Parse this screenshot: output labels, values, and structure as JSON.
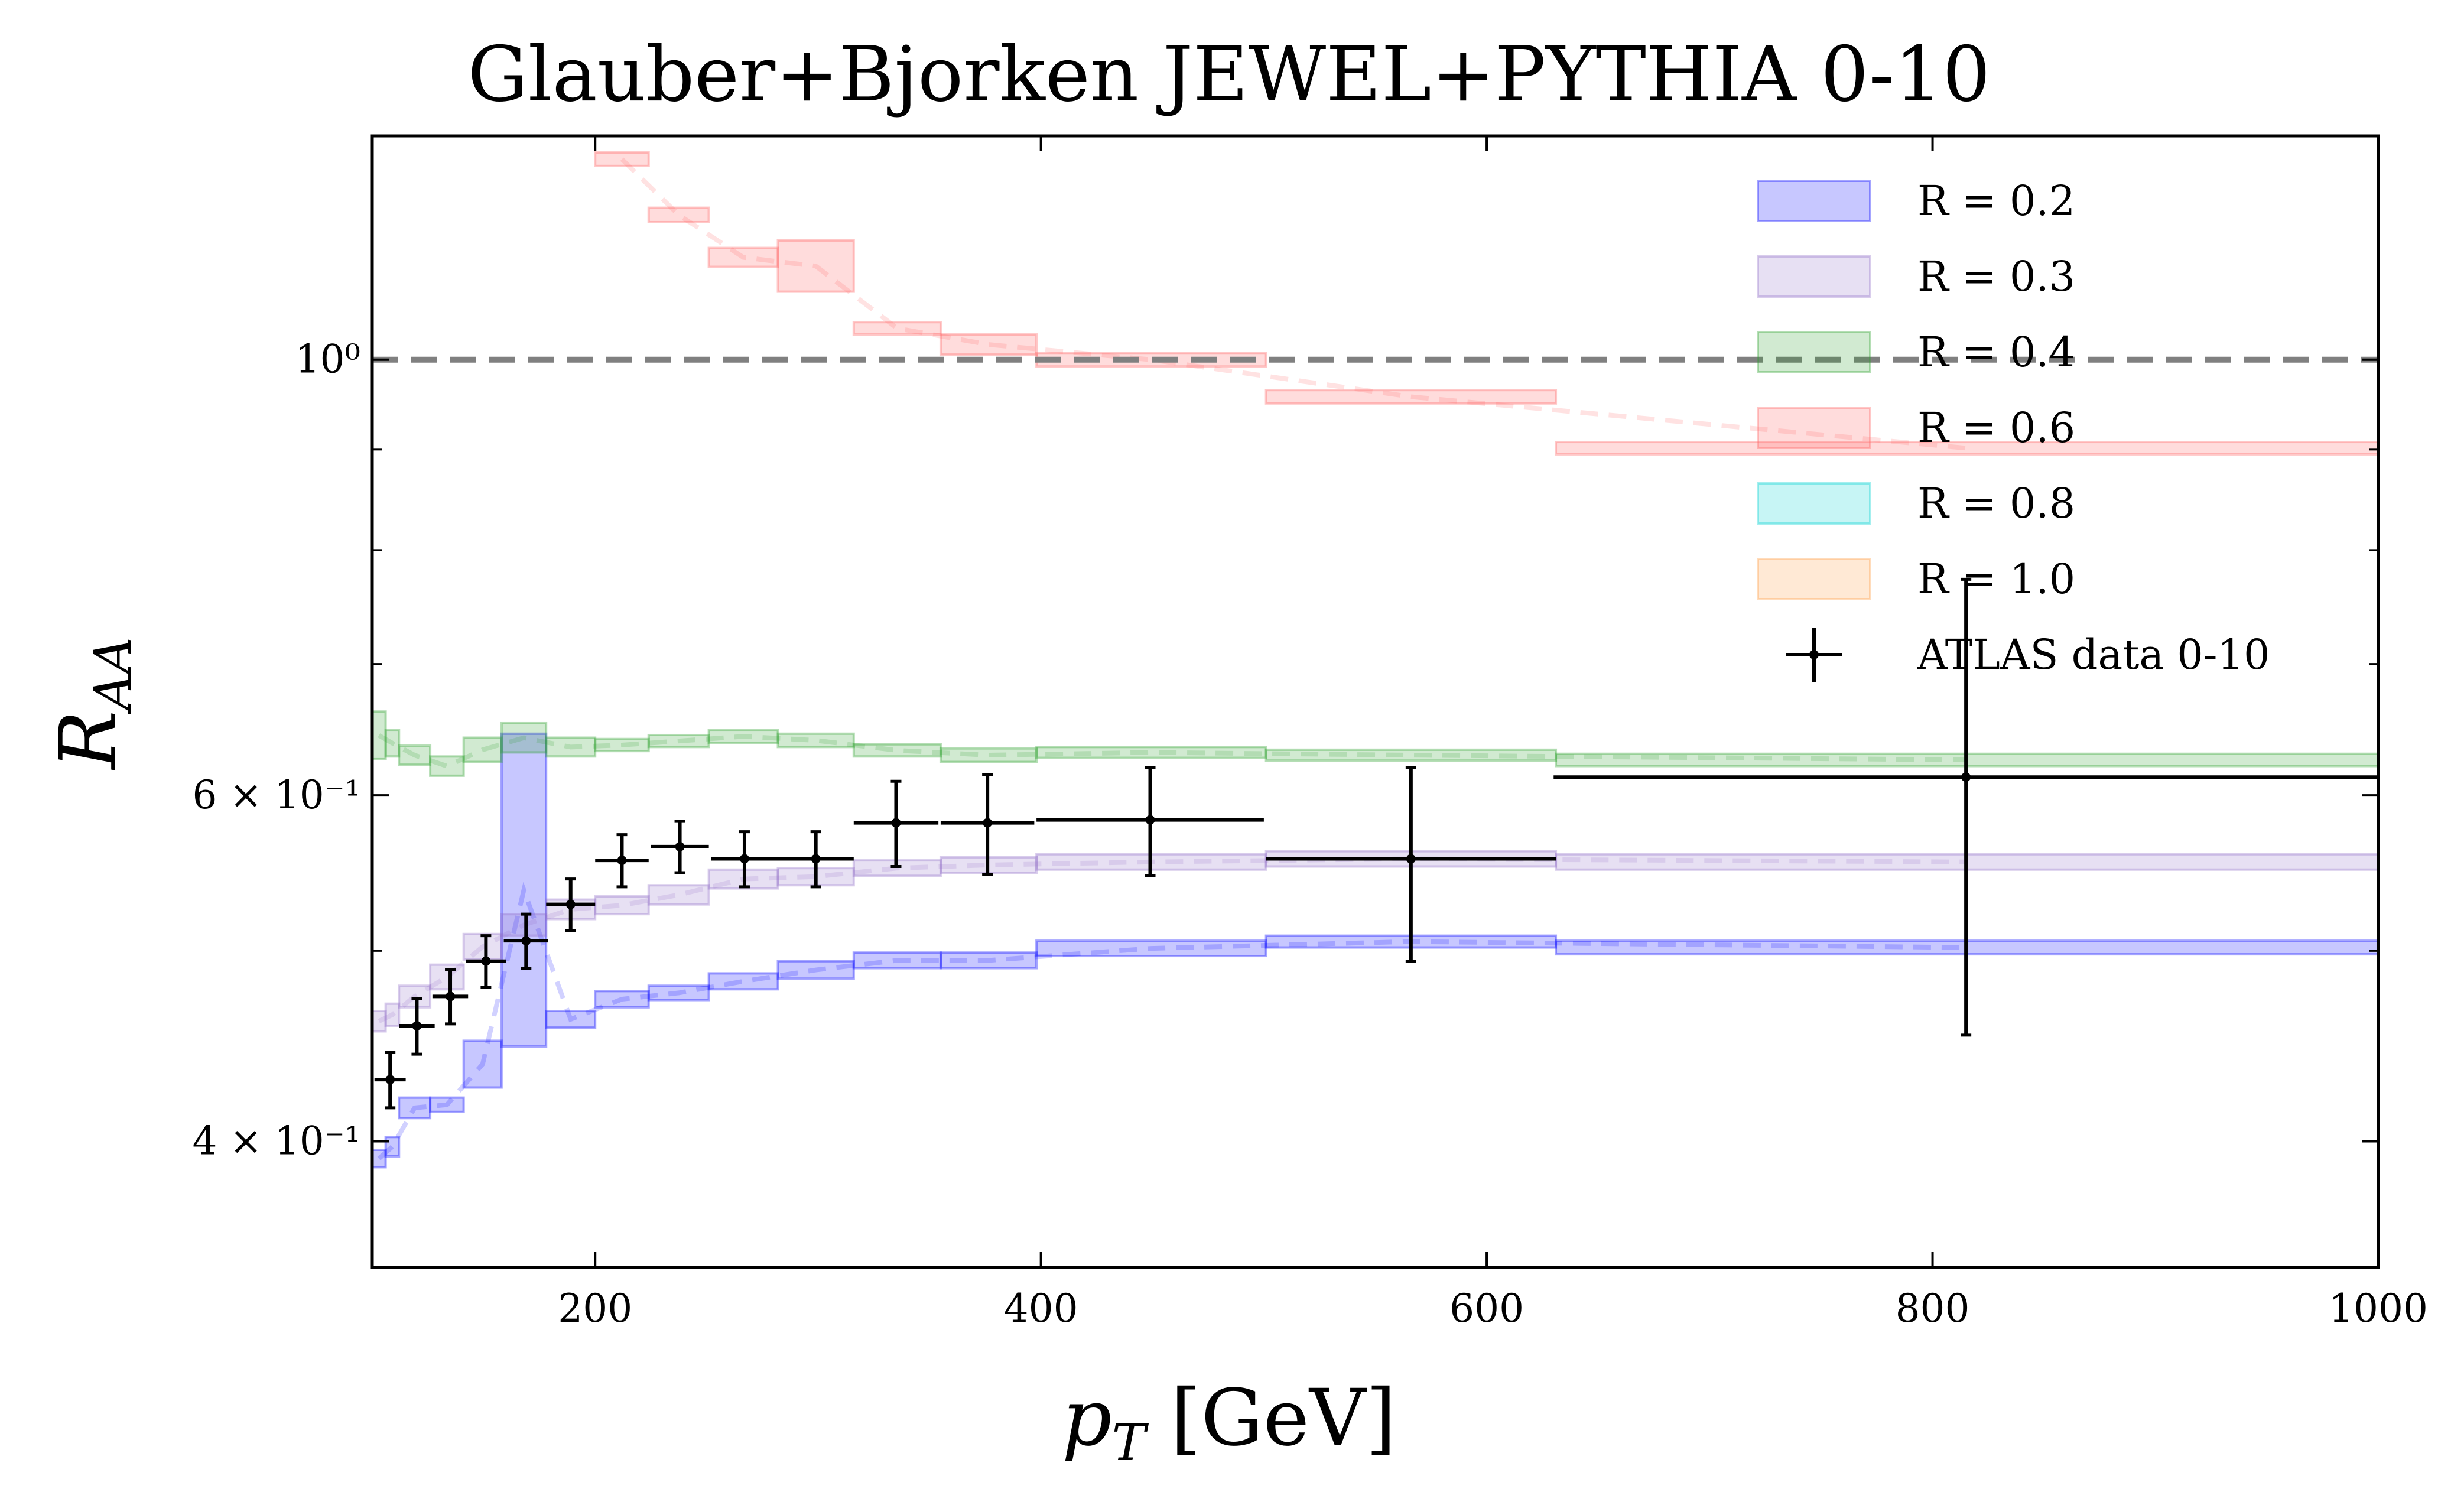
{
  "chart_data": {
    "type": "area",
    "title": "Glauber+Bjorken JEWEL+PYTHIA 0-10",
    "xlabel": "p_T [GeV]",
    "ylabel": "R_AA",
    "xlim": [
      100,
      1000
    ],
    "ylim": [
      0.345,
      1.3
    ],
    "yscale": "log",
    "x_ticks": [
      200,
      400,
      600,
      800,
      1000
    ],
    "y_ticks": [
      {
        "value": 0.4,
        "label": "4 × 10⁻¹"
      },
      {
        "value": 0.6,
        "label": "6 × 10⁻¹"
      },
      {
        "value": 1.0,
        "label": "10⁰"
      }
    ],
    "y_minor_ticks": [
      0.5,
      0.7,
      0.8,
      0.9
    ],
    "reference_line": {
      "y": 1.0,
      "style": "dashed",
      "color": "#808080"
    },
    "legend_position": "top-right",
    "series": [
      {
        "name": "R = 0.2",
        "color": "#0000ff",
        "edges": [
          100,
          106,
          112,
          126,
          141,
          158,
          178,
          200,
          224,
          251,
          282,
          316,
          355,
          398,
          501,
          631,
          1000
        ],
        "lo": [
          0.388,
          0.393,
          0.411,
          0.414,
          0.426,
          0.447,
          0.457,
          0.468,
          0.472,
          0.478,
          0.484,
          0.49,
          0.49,
          0.497,
          0.502,
          0.498,
          0.496
        ],
        "hi": [
          0.396,
          0.402,
          0.421,
          0.421,
          0.45,
          0.645,
          0.466,
          0.477,
          0.48,
          0.487,
          0.494,
          0.499,
          0.499,
          0.506,
          0.509,
          0.506,
          0.504
        ]
      },
      {
        "name": "R = 0.3",
        "color": "#9370c8",
        "edges": [
          100,
          106,
          112,
          126,
          141,
          158,
          178,
          200,
          224,
          251,
          282,
          316,
          355,
          398,
          501,
          631,
          1000
        ],
        "lo": [
          0.455,
          0.458,
          0.468,
          0.478,
          0.495,
          0.509,
          0.519,
          0.522,
          0.528,
          0.538,
          0.54,
          0.546,
          0.548,
          0.55,
          0.552,
          0.55,
          0.549
        ],
        "hi": [
          0.466,
          0.47,
          0.48,
          0.492,
          0.51,
          0.522,
          0.531,
          0.533,
          0.54,
          0.55,
          0.551,
          0.556,
          0.558,
          0.56,
          0.562,
          0.56,
          0.559
        ]
      },
      {
        "name": "R = 0.4",
        "color": "#2ca02c",
        "edges": [
          100,
          106,
          112,
          126,
          141,
          158,
          178,
          200,
          224,
          251,
          282,
          316,
          355,
          398,
          501,
          631,
          1000
        ],
        "lo": [
          0.626,
          0.628,
          0.622,
          0.614,
          0.624,
          0.631,
          0.628,
          0.632,
          0.635,
          0.638,
          0.635,
          0.628,
          0.624,
          0.627,
          0.625,
          0.621,
          0.611
        ],
        "hi": [
          0.662,
          0.648,
          0.636,
          0.628,
          0.642,
          0.653,
          0.642,
          0.641,
          0.644,
          0.648,
          0.645,
          0.637,
          0.634,
          0.635,
          0.633,
          0.63,
          0.62
        ]
      },
      {
        "name": "R = 0.6",
        "color": "#ff6060",
        "edges": [
          200,
          224,
          251,
          282,
          316,
          355,
          398,
          501,
          631,
          1000
        ],
        "lo": [
          1.255,
          1.175,
          1.115,
          1.083,
          1.03,
          1.006,
          0.992,
          0.95,
          0.895,
          0.885
        ],
        "hi": [
          1.275,
          1.195,
          1.14,
          1.15,
          1.045,
          1.03,
          1.008,
          0.965,
          0.908,
          0.898
        ]
      },
      {
        "name": "R = 0.8",
        "color": "#00d0d0",
        "edges": [],
        "lo": [],
        "hi": []
      },
      {
        "name": "R = 1.0",
        "color": "#ff9a40",
        "edges": [],
        "lo": [],
        "hi": []
      }
    ],
    "data_points": {
      "name": "ATLAS data 0-10",
      "color": "#000000",
      "points": [
        {
          "x": 108,
          "xerr": [
            7,
            7
          ],
          "y": 0.43,
          "yerr": [
            0.014,
            0.014
          ]
        },
        {
          "x": 120,
          "xerr": [
            8,
            8
          ],
          "y": 0.458,
          "yerr": [
            0.015,
            0.015
          ]
        },
        {
          "x": 135,
          "xerr": [
            8,
            8
          ],
          "y": 0.474,
          "yerr": [
            0.015,
            0.015
          ]
        },
        {
          "x": 151,
          "xerr": [
            9,
            9
          ],
          "y": 0.494,
          "yerr": [
            0.015,
            0.015
          ]
        },
        {
          "x": 169,
          "xerr": [
            10,
            10
          ],
          "y": 0.506,
          "yerr": [
            0.016,
            0.016
          ]
        },
        {
          "x": 189,
          "xerr": [
            11,
            11
          ],
          "y": 0.528,
          "yerr": [
            0.016,
            0.016
          ]
        },
        {
          "x": 212,
          "xerr": [
            12,
            12
          ],
          "y": 0.556,
          "yerr": [
            0.017,
            0.017
          ]
        },
        {
          "x": 238,
          "xerr": [
            13,
            13
          ],
          "y": 0.565,
          "yerr": [
            0.017,
            0.017
          ]
        },
        {
          "x": 267,
          "xerr": [
            15,
            15
          ],
          "y": 0.557,
          "yerr": [
            0.018,
            0.018
          ]
        },
        {
          "x": 299,
          "xerr": [
            17,
            17
          ],
          "y": 0.557,
          "yerr": [
            0.018,
            0.018
          ]
        },
        {
          "x": 335,
          "xerr": [
            19,
            19
          ],
          "y": 0.581,
          "yerr": [
            0.029,
            0.029
          ]
        },
        {
          "x": 376,
          "xerr": [
            21,
            21
          ],
          "y": 0.581,
          "yerr": [
            0.034,
            0.034
          ]
        },
        {
          "x": 449,
          "xerr": [
            51,
            51
          ],
          "y": 0.583,
          "yerr": [
            0.037,
            0.037
          ]
        },
        {
          "x": 566,
          "xerr": [
            65,
            65
          ],
          "y": 0.557,
          "yerr": [
            0.063,
            0.063
          ]
        },
        {
          "x": 815,
          "xerr": [
            185,
            185
          ],
          "y": 0.613,
          "yerr": [
            0.16,
            0.16
          ]
        }
      ]
    }
  }
}
